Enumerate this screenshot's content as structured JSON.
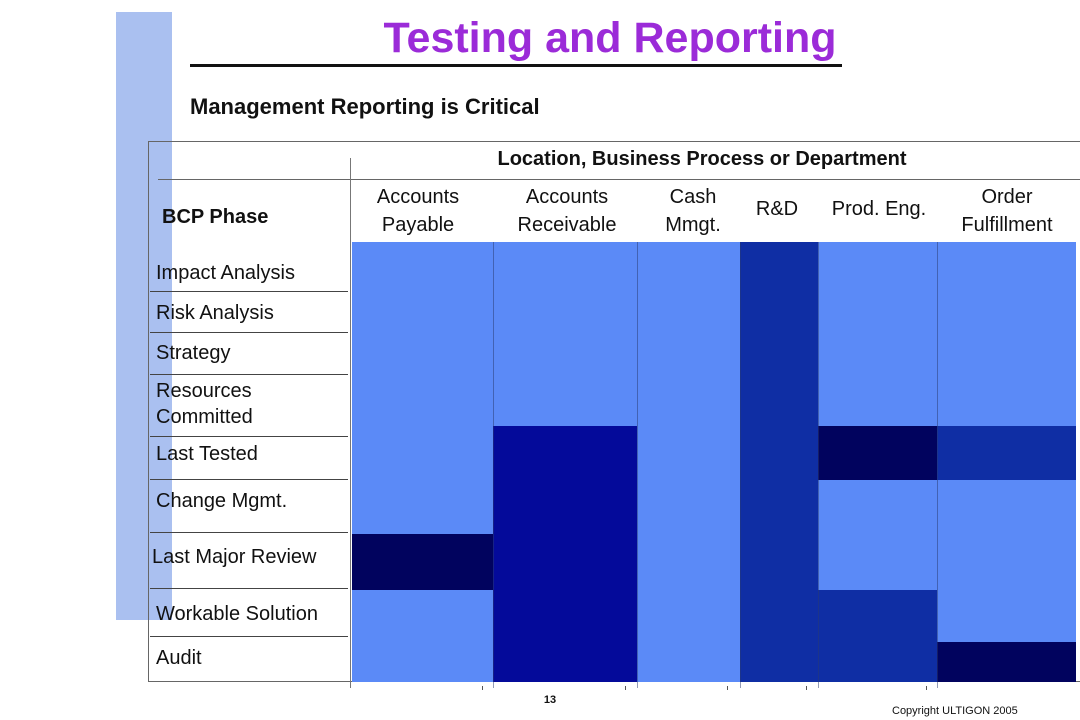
{
  "slide": {
    "title": "Testing and Reporting",
    "subtitle": "Management Reporting is Critical",
    "page_number": "13",
    "copyright": "Copyright ULTIGON 2005"
  },
  "matrix": {
    "location_header": "Location, Business Process or Department",
    "phase_header": "BCP Phase",
    "columns": [
      {
        "line1": "Accounts",
        "line2": "Payable"
      },
      {
        "line1": "Accounts",
        "line2": "Receivable"
      },
      {
        "line1": "Cash",
        "line2": "Mmgt."
      },
      {
        "line1": "R&D",
        "line2": ""
      },
      {
        "line1": "Prod. Eng.",
        "line2": ""
      },
      {
        "line1": "Order",
        "line2": "Fulfillment"
      }
    ],
    "rows": [
      {
        "line1": "Impact Analysis",
        "line2": ""
      },
      {
        "line1": "Risk Analysis",
        "line2": ""
      },
      {
        "line1": "Strategy",
        "line2": ""
      },
      {
        "line1": "Resources",
        "line2": "Committed"
      },
      {
        "line1": "Last Tested",
        "line2": ""
      },
      {
        "line1": "Change Mgmt.",
        "line2": ""
      },
      {
        "line1": "Last Major Review",
        "line2": ""
      },
      {
        "line1": "Workable Solution",
        "line2": ""
      },
      {
        "line1": "Audit",
        "line2": ""
      }
    ],
    "colors": {
      "light": "#5b8af7",
      "medium": "#0f2ea4",
      "dark": "#040a9a",
      "darkest": "#01035e",
      "accent_bar": "#aac0f0",
      "title": "#9b2bd8"
    },
    "cell_levels": [
      [
        "light",
        "light",
        "light",
        "medium",
        "light",
        "light"
      ],
      [
        "light",
        "light",
        "light",
        "medium",
        "light",
        "light"
      ],
      [
        "light",
        "light",
        "light",
        "medium",
        "light",
        "light"
      ],
      [
        "light",
        "light",
        "light",
        "medium",
        "light",
        "light"
      ],
      [
        "light",
        "dark",
        "light",
        "medium",
        "darkest",
        "medium"
      ],
      [
        "light",
        "dark",
        "light",
        "medium",
        "light",
        "light"
      ],
      [
        "darkest",
        "dark",
        "light",
        "medium",
        "light",
        "light"
      ],
      [
        "light",
        "dark",
        "light",
        "medium",
        "medium",
        "light"
      ],
      [
        "light",
        "dark",
        "light",
        "medium",
        "medium",
        "darkest"
      ]
    ]
  }
}
